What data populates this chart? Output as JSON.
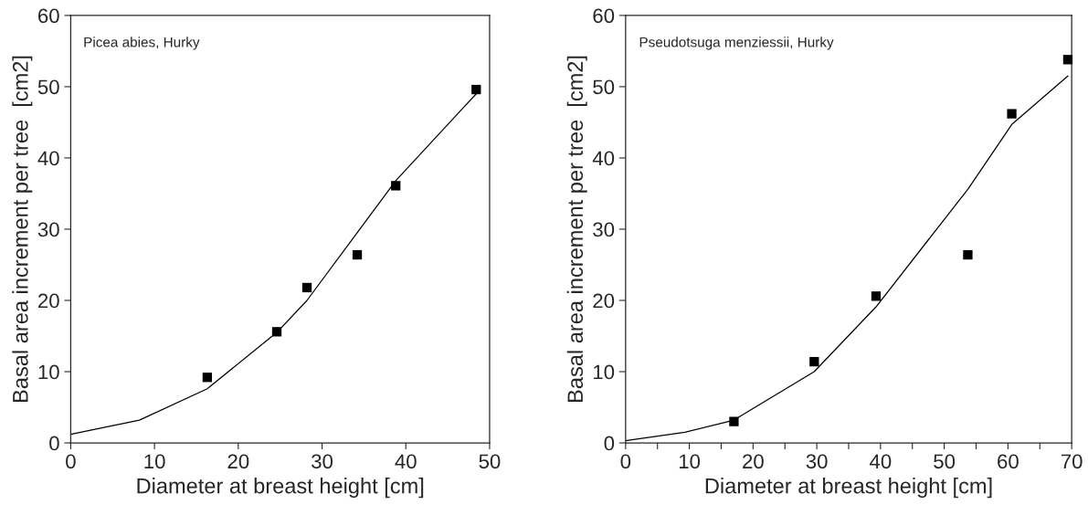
{
  "chart_data": [
    {
      "type": "scatter",
      "xlabel": "Diameter at breast height [cm]",
      "ylabel": "Basal area increment per tree  [cm2]",
      "annotations": [
        "Picea abies, Hurky"
      ],
      "xlim": [
        0,
        50
      ],
      "ylim": [
        0,
        60
      ],
      "xticks": [
        0,
        10,
        20,
        30,
        40,
        50
      ],
      "yticks": [
        0,
        10,
        20,
        30,
        40,
        50,
        60
      ],
      "grid": false,
      "legend": false,
      "series": [
        {
          "color": "#000000",
          "marker": "square",
          "x": [
            16.3,
            24.6,
            28.2,
            34.2,
            38.8,
            48.4
          ],
          "values": [
            9.2,
            15.6,
            21.8,
            26.4,
            36.1,
            49.6
          ]
        },
        {
          "type": "line",
          "color": "#000000",
          "marker": "none",
          "line_style": "solid",
          "x": [
            0,
            8.2,
            16.3,
            24.6,
            28.2,
            38.8,
            48.4
          ],
          "values": [
            1.2,
            3.2,
            7.6,
            15.5,
            20,
            36.8,
            49
          ]
        }
      ]
    },
    {
      "type": "scatter",
      "xlabel": "Diameter at breast height [cm]",
      "ylabel": "Basal area increment per tree  [cm2]",
      "annotations": [
        "Pseudotsuga menziessii, Hurky"
      ],
      "xlim": [
        0,
        70
      ],
      "ylim": [
        0,
        60
      ],
      "xticks": [
        0,
        {
          "value": 5,
          "label": null
        },
        10,
        {
          "value": 15,
          "label": null
        },
        20,
        {
          "value": 25,
          "label": null
        },
        30,
        {
          "value": 35,
          "label": null
        },
        40,
        {
          "value": 45,
          "label": null
        },
        50,
        {
          "value": 55,
          "label": null
        },
        60,
        {
          "value": 65,
          "label": null
        },
        70
      ],
      "yticks": [
        0,
        10,
        20,
        30,
        40,
        50,
        60
      ],
      "grid": false,
      "legend": false,
      "series": [
        {
          "color": "#000000",
          "marker": "square",
          "x": [
            17.0,
            29.6,
            39.3,
            53.7,
            60.6,
            69.4
          ],
          "values": [
            3.0,
            11.4,
            20.6,
            26.4,
            46.2,
            53.8
          ]
        },
        {
          "type": "line",
          "color": "#000000",
          "marker": "none",
          "line_style": "solid",
          "x": [
            0,
            9.3,
            17.0,
            29.6,
            39.3,
            53.7,
            60.6,
            69.4
          ],
          "values": [
            0.3,
            1.5,
            3.2,
            10,
            19.1,
            35.6,
            44.7,
            51.5
          ]
        }
      ]
    }
  ]
}
